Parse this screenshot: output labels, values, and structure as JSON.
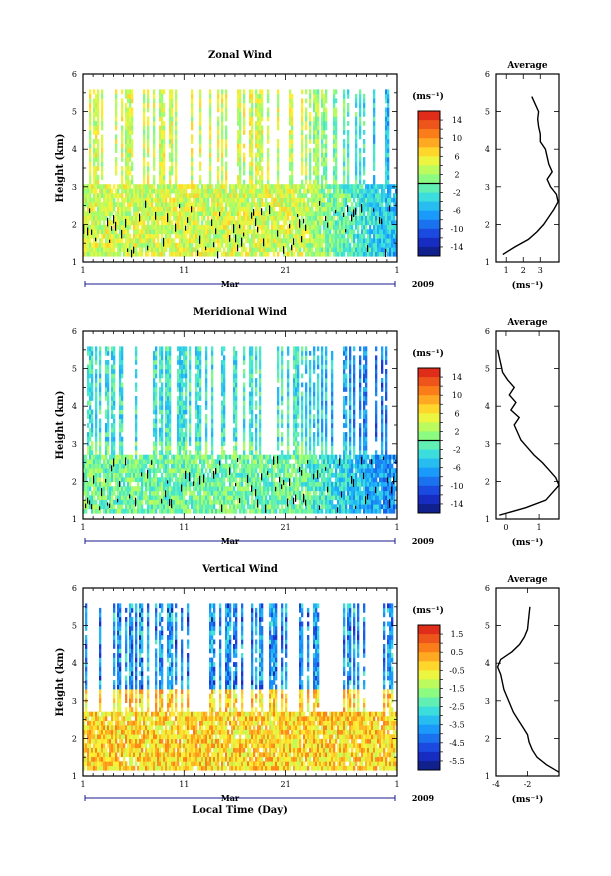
{
  "chart_data": {
    "type": "heatmap",
    "year_label": "2009",
    "month_label": "Mar",
    "x_tick_labels": [
      "1",
      "11",
      "21",
      "1"
    ],
    "xlabel": "Local Time (Day)",
    "x_range_days": [
      1,
      32
    ],
    "panels": [
      {
        "id": "zonal",
        "title": "Zonal Wind",
        "ylabel": "Height (km)",
        "ylim": [
          1,
          6
        ],
        "y_ticks": [
          1,
          2,
          3,
          4,
          5,
          6
        ],
        "colorbar_unit": "(ms⁻¹)",
        "colorbar_range": [
          -16,
          16
        ],
        "colorbar_labels": [
          "14",
          "10",
          "6",
          "2",
          "-2",
          "-6",
          "-10",
          "-14"
        ],
        "profile": {
          "title": "Average",
          "xlabel": "(ms⁻¹)",
          "xlim": [
            0.4,
            4.1
          ],
          "x_ticks": [
            1,
            2,
            3
          ],
          "heights": [
            1.2,
            1.4,
            1.6,
            1.8,
            2.0,
            2.2,
            2.4,
            2.6,
            2.8,
            3.0,
            3.2,
            3.4,
            3.6,
            3.8,
            4.0,
            4.2,
            4.4,
            4.6,
            4.8,
            5.0,
            5.2,
            5.4
          ],
          "values": [
            0.8,
            1.5,
            2.3,
            2.8,
            3.2,
            3.5,
            3.8,
            4.05,
            3.95,
            3.6,
            3.4,
            3.7,
            3.5,
            3.4,
            3.3,
            3.0,
            3.0,
            2.9,
            2.85,
            2.9,
            2.7,
            2.5
          ]
        }
      },
      {
        "id": "meridional",
        "title": "Meridional Wind",
        "ylabel": "Height (km)",
        "ylim": [
          1,
          6
        ],
        "y_ticks": [
          1,
          2,
          3,
          4,
          5,
          6
        ],
        "colorbar_unit": "(ms⁻¹)",
        "colorbar_range": [
          -16,
          16
        ],
        "colorbar_labels": [
          "14",
          "10",
          "6",
          "2",
          "-2",
          "-6",
          "-10",
          "-14"
        ],
        "profile": {
          "title": "Average",
          "xlabel": "(ms⁻¹)",
          "xlim": [
            -0.3,
            1.6
          ],
          "x_ticks": [
            0,
            1
          ],
          "heights": [
            1.1,
            1.3,
            1.5,
            1.7,
            1.9,
            2.1,
            2.3,
            2.5,
            2.7,
            2.9,
            3.1,
            3.3,
            3.5,
            3.7,
            3.9,
            4.1,
            4.3,
            4.5,
            4.7,
            4.9,
            5.1,
            5.3,
            5.5
          ],
          "values": [
            -0.2,
            0.6,
            1.2,
            1.4,
            1.6,
            1.5,
            1.3,
            1.1,
            0.85,
            0.65,
            0.45,
            0.35,
            0.25,
            0.4,
            0.15,
            0.3,
            0.1,
            0.25,
            0.05,
            -0.1,
            -0.15,
            -0.2,
            -0.25
          ]
        }
      },
      {
        "id": "vertical",
        "title": "Vertical Wind",
        "ylabel": "Height (km)",
        "ylim": [
          1,
          6
        ],
        "y_ticks": [
          1,
          2,
          3,
          4,
          5,
          6
        ],
        "colorbar_unit": "(ms⁻¹)",
        "colorbar_range": [
          -6.5,
          2.5
        ],
        "colorbar_labels": [
          "1.5",
          "0.5",
          "-0.5",
          "-1.5",
          "-2.5",
          "-3.5",
          "-4.5",
          "-5.5"
        ],
        "profile": {
          "title": "Average",
          "xlabel": "(ms⁻¹)",
          "xlim": [
            -4,
            0
          ],
          "x_ticks": [
            -4,
            -2
          ],
          "heights": [
            1.1,
            1.3,
            1.5,
            1.7,
            1.9,
            2.1,
            2.3,
            2.5,
            2.7,
            2.9,
            3.1,
            3.3,
            3.5,
            3.7,
            3.9,
            4.1,
            4.3,
            4.5,
            4.7,
            4.9,
            5.1,
            5.3,
            5.5
          ],
          "values": [
            0.0,
            -0.8,
            -1.4,
            -1.7,
            -1.9,
            -2.0,
            -2.3,
            -2.6,
            -2.9,
            -3.1,
            -3.3,
            -3.5,
            -3.6,
            -3.7,
            -3.9,
            -3.7,
            -3.0,
            -2.5,
            -2.2,
            -2.0,
            -1.95,
            -1.9,
            -1.85
          ]
        }
      }
    ]
  }
}
